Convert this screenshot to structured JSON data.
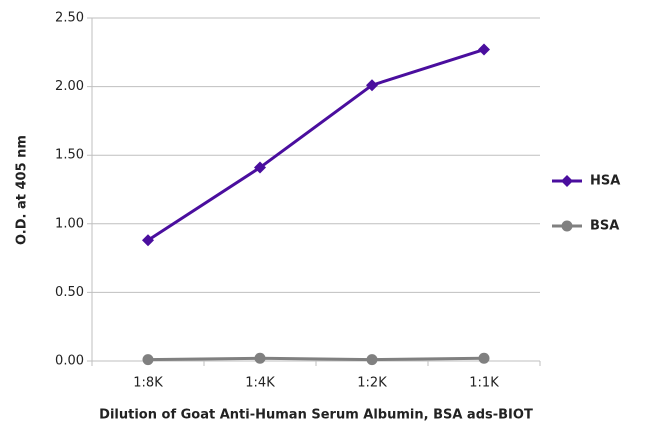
{
  "chart_data": {
    "type": "line",
    "x_label": "Dilution of Goat Anti-Human Serum Albumin, BSA ads-BIOT",
    "y_label": "O.D. at 405 nm",
    "categories": [
      "1:8K",
      "1:4K",
      "1:2K",
      "1:1K"
    ],
    "series": [
      {
        "name": "HSA",
        "color": "#4a0e9e",
        "marker": "diamond",
        "values": [
          0.88,
          1.41,
          2.01,
          2.27
        ]
      },
      {
        "name": "BSA",
        "color": "#808080",
        "marker": "circle",
        "values": [
          0.01,
          0.02,
          0.01,
          0.02
        ]
      }
    ],
    "ylim": [
      0,
      2.5
    ],
    "yticks": [
      {
        "value": 0,
        "label": "0.00"
      },
      {
        "value": 0.5,
        "label": "0.50"
      },
      {
        "value": 1,
        "label": "1.00"
      },
      {
        "value": 1.5,
        "label": "1.50"
      },
      {
        "value": 2,
        "label": "2.00"
      },
      {
        "value": 2.5,
        "label": "2.50"
      }
    ],
    "grid": true,
    "legend": "right"
  }
}
